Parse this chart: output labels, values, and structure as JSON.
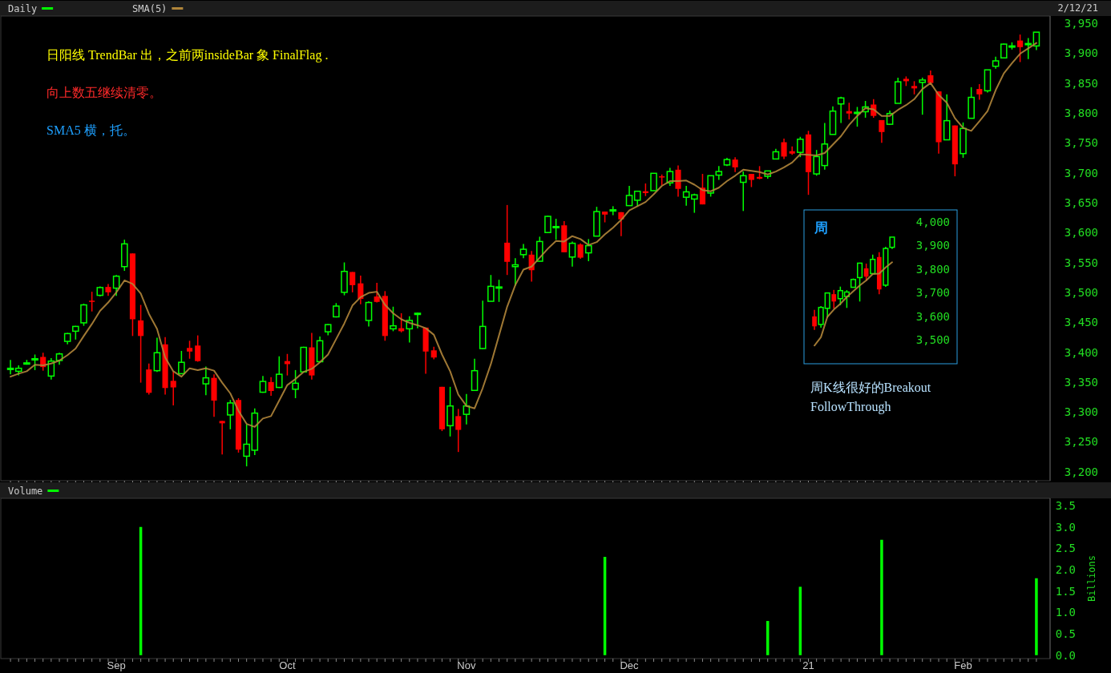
{
  "chart_data": [
    {
      "type": "candlestick",
      "legend": "top left",
      "tick_labels": "y",
      "categories": [
        null,
        null,
        null,
        null,
        null,
        null,
        null,
        null,
        null,
        null,
        null,
        null,
        null,
        null,
        null,
        null,
        null,
        null,
        null,
        null,
        null,
        null,
        null,
        null,
        null,
        null,
        null,
        null,
        null,
        null,
        null,
        null,
        null,
        null,
        null,
        null,
        null,
        null,
        null,
        null,
        null,
        null,
        null,
        null,
        null,
        null,
        null,
        null,
        null,
        null,
        null,
        null,
        null,
        null,
        null,
        null,
        null,
        null,
        null,
        null,
        null,
        null,
        null,
        null,
        null,
        null,
        null,
        null,
        null,
        null,
        null,
        null,
        null,
        null,
        null,
        null,
        null,
        null,
        null,
        null,
        null,
        null,
        null,
        null,
        null,
        null,
        null,
        null,
        null,
        null,
        null,
        null,
        null,
        null,
        null,
        null,
        null,
        null,
        null,
        null,
        null,
        null,
        null,
        null,
        null,
        null,
        null,
        null,
        null,
        null,
        null,
        null,
        null,
        null,
        null,
        null,
        null,
        null,
        null,
        null,
        null,
        null,
        null,
        null,
        null,
        null,
        null
      ],
      "ylim": [
        3185,
        3962
      ],
      "yticks": [
        {
          "value": 3200,
          "label": "3,200"
        },
        {
          "value": 3250,
          "label": "3,250"
        },
        {
          "value": 3300,
          "label": "3,300"
        },
        {
          "value": 3350,
          "label": "3,350"
        },
        {
          "value": 3400,
          "label": "3,400"
        },
        {
          "value": 3450,
          "label": "3,450"
        },
        {
          "value": 3500,
          "label": "3,500"
        },
        {
          "value": 3550,
          "label": "3,550"
        },
        {
          "value": 3600,
          "label": "3,600"
        },
        {
          "value": 3650,
          "label": "3,650"
        },
        {
          "value": 3700,
          "label": "3,700"
        },
        {
          "value": 3750,
          "label": "3,750"
        },
        {
          "value": 3800,
          "label": "3,800"
        },
        {
          "value": 3850,
          "label": "3,850"
        },
        {
          "value": 3900,
          "label": "3,900"
        },
        {
          "value": 3950,
          "label": "3,950"
        }
      ],
      "series": [
        {
          "name": "Daily",
          "color": "#00ff00",
          "colors": [
            "#00ff00",
            "#00ff00",
            "#00ff00",
            "#00ff00",
            "#ff0000",
            "#00ff00",
            "#00ff00",
            "#00ff00",
            "#00ff00",
            "#00ff00",
            "#ff0000",
            "#00ff00",
            "#ff0000",
            "#00ff00",
            "#00ff00",
            "#ff0000",
            "#ff0000",
            "#ff0000",
            "#00ff00",
            "#ff0000",
            "#ff0000",
            "#00ff00",
            "#ff0000",
            "#ff0000",
            "#00ff00",
            "#ff0000",
            "#ff0000",
            "#00ff00",
            "#ff0000",
            "#00ff00",
            "#00ff00",
            "#00ff00",
            "#ff0000",
            "#00ff00",
            "#ff0000",
            "#00ff00",
            "#00ff00",
            "#ff0000",
            "#00ff00",
            "#00ff00",
            "#00ff00",
            "#00ff00",
            "#ff0000",
            "#ff0000",
            "#00ff00",
            "#ff0000",
            "#ff0000",
            "#00ff00",
            "#ff0000",
            "#00ff00",
            "#00ff00",
            "#ff0000",
            "#ff0000",
            "#ff0000",
            "#00ff00",
            "#ff0000",
            "#00ff00",
            "#00ff00",
            "#00ff00",
            "#00ff00",
            "#00ff00",
            "#ff0000",
            "#00ff00",
            "#00ff00",
            "#ff0000",
            "#00ff00",
            "#00ff00",
            "#00ff00",
            "#ff0000",
            "#00ff00",
            "#ff0000",
            "#00ff00",
            "#00ff00",
            "#ff0000",
            "#00ff00",
            "#ff0000",
            "#00ff00",
            "#00ff00",
            "#ff0000",
            "#00ff00",
            "#ff0000",
            "#00ff00",
            "#ff0000",
            "#00ff00",
            "#00ff00",
            "#ff0000",
            "#00ff00",
            "#00ff00",
            "#00ff00",
            "#ff0000",
            "#00ff00",
            "#ff0000",
            "#ff0000",
            "#00ff00",
            "#00ff00",
            "#ff0000",
            "#ff0000",
            "#00ff00",
            "#ff0000",
            "#00ff00",
            "#00ff00",
            "#00ff00",
            "#00ff00",
            "#ff0000",
            "#00ff00",
            "#00ff00",
            "#ff0000",
            "#ff0000",
            "#00ff00",
            "#00ff00",
            "#ff0000",
            "#ff0000",
            "#00ff00",
            "#ff0000",
            "#ff0000",
            "#00ff00",
            "#ff0000",
            "#00ff00",
            "#00ff00",
            "#ff0000",
            "#00ff00",
            "#00ff00",
            "#00ff00",
            "#00ff00",
            "#ff0000",
            "#00ff00",
            "#00ff00"
          ],
          "ohlc": [
            [
              3372,
              3387,
              3363,
              3373
            ],
            [
              3368,
              3378,
              3361,
              3373
            ],
            [
              3380,
              3387,
              3379,
              3382
            ],
            [
              3387,
              3396,
              3370,
              3389
            ],
            [
              3392,
              3399,
              3369,
              3375
            ],
            [
              3360,
              3390,
              3354,
              3385
            ],
            [
              3386,
              3399,
              3379,
              3397
            ],
            [
              3418,
              3432,
              3413,
              3431
            ],
            [
              3435,
              3444,
              3421,
              3443
            ],
            [
              3449,
              3481,
              3444,
              3479
            ],
            [
              3486,
              3501,
              3468,
              3485
            ],
            [
              3495,
              3510,
              3493,
              3508
            ],
            [
              3509,
              3514,
              3494,
              3500
            ],
            [
              3507,
              3529,
              3494,
              3527
            ],
            [
              3543,
              3588,
              3536,
              3581
            ],
            [
              3565,
              3565,
              3427,
              3455
            ],
            [
              3453,
              3479,
              3349,
              3427
            ],
            [
              3371,
              3381,
              3329,
              3332
            ],
            [
              3369,
              3424,
              3367,
              3399
            ],
            [
              3413,
              3425,
              3329,
              3340
            ],
            [
              3352,
              3368,
              3311,
              3341
            ],
            [
              3364,
              3402,
              3364,
              3383
            ],
            [
              3407,
              3419,
              3389,
              3401
            ],
            [
              3411,
              3428,
              3384,
              3385
            ],
            [
              3347,
              3376,
              3328,
              3357
            ],
            [
              3357,
              3363,
              3292,
              3319
            ],
            [
              3285,
              3285,
              3229,
              3281
            ],
            [
              3295,
              3320,
              3271,
              3315
            ],
            [
              3320,
              3323,
              3232,
              3237
            ],
            [
              3226,
              3279,
              3209,
              3246
            ],
            [
              3236,
              3306,
              3228,
              3298
            ],
            [
              3333,
              3360,
              3332,
              3351
            ],
            [
              3350,
              3358,
              3327,
              3335
            ],
            [
              3341,
              3393,
              3340,
              3363
            ],
            [
              3385,
              3397,
              3361,
              3380
            ],
            [
              3338,
              3370,
              3323,
              3348
            ],
            [
              3367,
              3409,
              3367,
              3408
            ],
            [
              3408,
              3432,
              3354,
              3361
            ],
            [
              3384,
              3426,
              3384,
              3419
            ],
            [
              3434,
              3447,
              3428,
              3446
            ],
            [
              3459,
              3482,
              3458,
              3477
            ],
            [
              3500,
              3550,
              3495,
              3535
            ],
            [
              3534,
              3534,
              3500,
              3512
            ],
            [
              3515,
              3528,
              3480,
              3489
            ],
            [
              3453,
              3485,
              3443,
              3483
            ],
            [
              3493,
              3516,
              3483,
              3484
            ],
            [
              3494,
              3502,
              3419,
              3427
            ],
            [
              3439,
              3476,
              3435,
              3444
            ],
            [
              3440,
              3465,
              3433,
              3435
            ],
            [
              3439,
              3460,
              3416,
              3453
            ],
            [
              3464,
              3466,
              3440,
              3465
            ],
            [
              3441,
              3441,
              3364,
              3401
            ],
            [
              3403,
              3409,
              3388,
              3391
            ],
            [
              3342,
              3342,
              3268,
              3271
            ],
            [
              3277,
              3342,
              3259,
              3310
            ],
            [
              3293,
              3305,
              3233,
              3270
            ],
            [
              3296,
              3330,
              3279,
              3310
            ],
            [
              3336,
              3389,
              3336,
              3369
            ],
            [
              3406,
              3486,
              3405,
              3443
            ],
            [
              3485,
              3529,
              3485,
              3510
            ],
            [
              3508,
              3521,
              3484,
              3509
            ],
            [
              3583,
              3646,
              3529,
              3551
            ],
            [
              3543,
              3557,
              3511,
              3546
            ],
            [
              3563,
              3581,
              3557,
              3572
            ],
            [
              3563,
              3569,
              3518,
              3537
            ],
            [
              3552,
              3593,
              3552,
              3585
            ],
            [
              3600,
              3628,
              3600,
              3627
            ],
            [
              3610,
              3623,
              3588,
              3610
            ],
            [
              3612,
              3619,
              3567,
              3567
            ],
            [
              3559,
              3585,
              3543,
              3582
            ],
            [
              3580,
              3582,
              3556,
              3558
            ],
            [
              3566,
              3589,
              3552,
              3578
            ],
            [
              3594,
              3643,
              3594,
              3635
            ],
            [
              3635,
              3635,
              3617,
              3630
            ],
            [
              3638,
              3644,
              3629,
              3638
            ],
            [
              3634,
              3634,
              3594,
              3622
            ],
            [
              3645,
              3678,
              3645,
              3662
            ],
            [
              3654,
              3670,
              3644,
              3669
            ],
            [
              3669,
              3682,
              3661,
              3666
            ],
            [
              3670,
              3699,
              3670,
              3699
            ],
            [
              3694,
              3697,
              3679,
              3692
            ],
            [
              3683,
              3708,
              3678,
              3702
            ],
            [
              3705,
              3712,
              3660,
              3673
            ],
            [
              3659,
              3678,
              3645,
              3668
            ],
            [
              3656,
              3665,
              3633,
              3663
            ],
            [
              3675,
              3698,
              3647,
              3647
            ],
            [
              3666,
              3695,
              3660,
              3695
            ],
            [
              3696,
              3711,
              3688,
              3702
            ],
            [
              3713,
              3725,
              3711,
              3722
            ],
            [
              3722,
              3726,
              3701,
              3709
            ],
            [
              3684,
              3702,
              3636,
              3695
            ],
            [
              3698,
              3698,
              3676,
              3688
            ],
            [
              3693,
              3711,
              3689,
              3690
            ],
            [
              3694,
              3703,
              3690,
              3703
            ],
            [
              3723,
              3740,
              3723,
              3735
            ],
            [
              3751,
              3757,
              3723,
              3727
            ],
            [
              3736,
              3744,
              3730,
              3732
            ],
            [
              3734,
              3760,
              3726,
              3756
            ],
            [
              3764,
              3770,
              3663,
              3701
            ],
            [
              3698,
              3738,
              3695,
              3727
            ],
            [
              3712,
              3783,
              3705,
              3748
            ],
            [
              3764,
              3811,
              3764,
              3803
            ],
            [
              3815,
              3827,
              3783,
              3825
            ],
            [
              3803,
              3817,
              3789,
              3799
            ],
            [
              3801,
              3810,
              3777,
              3801
            ],
            [
              3802,
              3820,
              3792,
              3810
            ],
            [
              3814,
              3823,
              3792,
              3795
            ],
            [
              3788,
              3788,
              3750,
              3768
            ],
            [
              3781,
              3804,
              3780,
              3799
            ],
            [
              3816,
              3859,
              3816,
              3852
            ],
            [
              3857,
              3861,
              3845,
              3853
            ],
            [
              3845,
              3853,
              3831,
              3841
            ],
            [
              3851,
              3859,
              3797,
              3855
            ],
            [
              3863,
              3871,
              3847,
              3850
            ],
            [
              3836,
              3836,
              3732,
              3751
            ],
            [
              3755,
              3831,
              3755,
              3787
            ],
            [
              3779,
              3779,
              3694,
              3714
            ],
            [
              3732,
              3784,
              3725,
              3774
            ],
            [
              3791,
              3843,
              3791,
              3826
            ],
            [
              3840,
              3848,
              3822,
              3831
            ],
            [
              3837,
              3872,
              3834,
              3872
            ],
            [
              3878,
              3894,
              3874,
              3887
            ],
            [
              3892,
              3916,
              3892,
              3915
            ],
            [
              3910,
              3918,
              3906,
              3912
            ],
            [
              3921,
              3931,
              3885,
              3910
            ],
            [
              3916,
              3925,
              3890,
              3916
            ],
            [
              3912,
              3935,
              3905,
              3935
            ]
          ]
        },
        {
          "name": "SMA(5)",
          "type": "line",
          "color": "#b0853a",
          "values": [
            3359,
            3364,
            3368,
            3379,
            3378,
            3381,
            3386,
            3395,
            3406,
            3427,
            3447,
            3469,
            3483,
            3500,
            3520,
            3514,
            3498,
            3464,
            3439,
            3391,
            3368,
            3359,
            3373,
            3370,
            3373,
            3369,
            3349,
            3331,
            3302,
            3280,
            3275,
            3289,
            3293,
            3319,
            3345,
            3355,
            3367,
            3372,
            3383,
            3396,
            3422,
            3448,
            3478,
            3492,
            3499,
            3501,
            3479,
            3465,
            3455,
            3449,
            3445,
            3440,
            3429,
            3396,
            3368,
            3329,
            3310,
            3306,
            3340,
            3380,
            3428,
            3476,
            3512,
            3538,
            3543,
            3558,
            3573,
            3586,
            3585,
            3594,
            3589,
            3579,
            3584,
            3597,
            3608,
            3621,
            3637,
            3644,
            3651,
            3664,
            3678,
            3686,
            3686,
            3687,
            3680,
            3671,
            3669,
            3675,
            3686,
            3695,
            3705,
            3703,
            3701,
            3697,
            3702,
            3709,
            3717,
            3731,
            3730,
            3729,
            3733,
            3747,
            3761,
            3780,
            3795,
            3808,
            3806,
            3795,
            3795,
            3805,
            3813,
            3823,
            3840,
            3850,
            3830,
            3817,
            3791,
            3775,
            3770,
            3786,
            3803,
            3838,
            3866,
            3883,
            3899,
            3908,
            3917
          ]
        }
      ],
      "annotations": [
        "2/12/21",
        "日阳线 TrendBar 出，之前两insideBar 象 FinalFlag .",
        "向上数五继续清零。",
        "SMA5 横，托。",
        "周K线很好的Breakout FollowThrough"
      ]
    },
    {
      "type": "bar",
      "legend": "top left",
      "ylabel": "Billions",
      "categories": [
        null,
        null,
        null,
        null,
        null,
        null,
        null,
        null,
        null,
        null,
        null,
        null,
        null,
        "Sep",
        null,
        null,
        null,
        null,
        null,
        null,
        null,
        null,
        null,
        null,
        null,
        null,
        null,
        null,
        null,
        null,
        null,
        null,
        null,
        null,
        "Oct",
        null,
        null,
        null,
        null,
        null,
        null,
        null,
        null,
        null,
        null,
        null,
        null,
        null,
        null,
        null,
        null,
        null,
        null,
        null,
        null,
        null,
        "Nov",
        null,
        null,
        null,
        null,
        null,
        null,
        null,
        null,
        null,
        null,
        null,
        null,
        null,
        null,
        null,
        null,
        null,
        null,
        null,
        "Dec",
        null,
        null,
        null,
        null,
        null,
        null,
        null,
        null,
        null,
        null,
        null,
        null,
        null,
        null,
        null,
        null,
        null,
        null,
        null,
        null,
        null,
        "21",
        null,
        null,
        null,
        null,
        null,
        null,
        null,
        null,
        null,
        null,
        null,
        null,
        null,
        null,
        null,
        null,
        null,
        null,
        "Feb",
        null,
        null,
        null,
        null,
        null,
        null,
        null,
        null,
        null
      ],
      "ylim": [
        -0.08,
        3.67
      ],
      "yticks": [
        {
          "value": 0,
          "label": "0.0"
        },
        {
          "value": 0.5,
          "label": "0.5"
        },
        {
          "value": 1,
          "label": "1.0"
        },
        {
          "value": 1.5,
          "label": "1.5"
        },
        {
          "value": 2,
          "label": "2.0"
        },
        {
          "value": 2.5,
          "label": "2.5"
        },
        {
          "value": 3,
          "label": "3.0"
        },
        {
          "value": 3.5,
          "label": "3.5"
        }
      ],
      "series": [
        {
          "name": "Volume",
          "color": "#00ff00",
          "values": [
            null,
            null,
            null,
            null,
            null,
            null,
            null,
            null,
            null,
            null,
            null,
            null,
            null,
            null,
            null,
            null,
            3.0,
            null,
            null,
            null,
            null,
            null,
            null,
            null,
            null,
            null,
            null,
            null,
            null,
            null,
            null,
            null,
            null,
            null,
            null,
            null,
            null,
            null,
            null,
            null,
            null,
            null,
            null,
            null,
            null,
            null,
            null,
            null,
            null,
            null,
            null,
            null,
            null,
            null,
            null,
            null,
            null,
            null,
            null,
            null,
            null,
            null,
            null,
            null,
            null,
            null,
            null,
            null,
            null,
            null,
            null,
            null,
            null,
            2.3,
            null,
            null,
            null,
            null,
            null,
            null,
            null,
            null,
            null,
            null,
            null,
            null,
            null,
            null,
            null,
            null,
            null,
            null,
            null,
            0.8,
            null,
            null,
            null,
            1.6,
            null,
            null,
            null,
            null,
            null,
            null,
            null,
            null,
            null,
            2.7,
            null,
            null,
            null,
            null,
            null,
            null,
            null,
            null,
            null,
            null,
            null,
            null,
            null,
            null,
            null,
            null,
            null,
            null,
            1.8
          ]
        }
      ]
    },
    {
      "type": "candlestick",
      "title": "周",
      "tick_labels": "y",
      "categories": [
        null,
        null,
        null,
        null,
        null,
        null,
        null,
        null,
        null,
        null,
        null,
        null,
        null
      ],
      "ylim": [
        3400,
        4050
      ],
      "yticks": [
        {
          "value": 3500,
          "label": "3,500"
        },
        {
          "value": 3600,
          "label": "3,600"
        },
        {
          "value": 3700,
          "label": "3,700"
        },
        {
          "value": 3800,
          "label": "3,800"
        },
        {
          "value": 3900,
          "label": "3,900"
        },
        {
          "value": 4000,
          "label": "4,000"
        }
      ],
      "series": [
        {
          "colors": [
            "#ff0000",
            "#00ff00",
            "#00ff00",
            "#ff0000",
            "#00ff00",
            "#00ff00",
            "#00ff00",
            "#00ff00",
            "#ff0000",
            "#00ff00",
            "#ff0000",
            "#00ff00",
            "#00ff00"
          ],
          "ohlc": [
            [
              3600,
              3628,
              3543,
              3558
            ],
            [
              3566,
              3644,
              3552,
              3638
            ],
            [
              3634,
              3699,
              3594,
              3699
            ],
            [
              3694,
              3712,
              3633,
              3663
            ],
            [
              3675,
              3726,
              3647,
              3709
            ],
            [
              3684,
              3711,
              3636,
              3703
            ],
            [
              3723,
              3760,
              3723,
              3756
            ],
            [
              3764,
              3827,
              3663,
              3825
            ],
            [
              3803,
              3823,
              3750,
              3768
            ],
            [
              3781,
              3861,
              3780,
              3841
            ],
            [
              3851,
              3871,
              3694,
              3714
            ],
            [
              3732,
              3894,
              3725,
              3887
            ],
            [
              3892,
              3935,
              3885,
              3935
            ]
          ]
        },
        {
          "type": "line",
          "color": "#b0853a",
          "values": [
            3477,
            3512,
            3598,
            3629,
            3653,
            3682,
            3706,
            3731,
            3752,
            3779,
            3781,
            3807,
            3829
          ]
        }
      ]
    }
  ]
}
